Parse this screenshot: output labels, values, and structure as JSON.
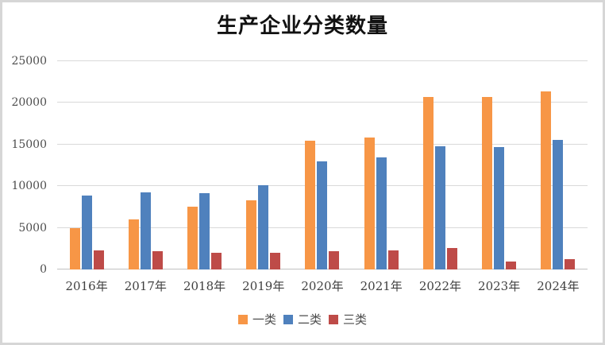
{
  "frame": {
    "border_color": "#d6d6d6",
    "background": "#ffffff"
  },
  "chart_data": {
    "type": "bar",
    "title": "生产企业分类数量",
    "categories": [
      "2016年",
      "2017年",
      "2018年",
      "2019年",
      "2020年",
      "2021年",
      "2022年",
      "2023年",
      "2024年"
    ],
    "series": [
      {
        "name": "一类",
        "color": "#f79646",
        "values": [
          5000,
          6000,
          7500,
          8300,
          15500,
          15800,
          20700,
          20700,
          21400
        ]
      },
      {
        "name": "二类",
        "color": "#4f81bd",
        "values": [
          8900,
          9300,
          9200,
          10100,
          13000,
          13500,
          14800,
          14700,
          15600
        ]
      },
      {
        "name": "三类",
        "color": "#be4b48",
        "values": [
          2300,
          2200,
          2000,
          2000,
          2200,
          2300,
          2600,
          1000,
          1200
        ]
      }
    ],
    "xlabel": "",
    "ylabel": "",
    "ylim": [
      0,
      25000
    ],
    "yticks": [
      0,
      5000,
      10000,
      15000,
      20000,
      25000
    ],
    "grid": true,
    "legend_position": "bottom"
  },
  "colors": {
    "gridline": "#d9d9d9",
    "axis_line": "#c0c0c0",
    "tick_label": "#4d4d4d",
    "title": "#111111"
  }
}
